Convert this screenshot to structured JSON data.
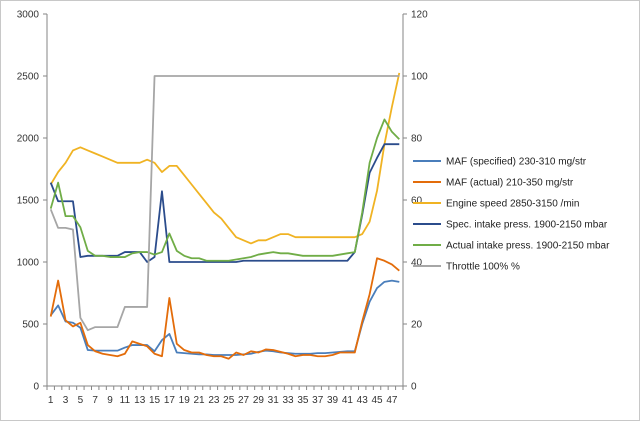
{
  "chart_data": {
    "type": "line",
    "x": [
      1,
      2,
      3,
      4,
      5,
      6,
      7,
      8,
      9,
      10,
      11,
      12,
      13,
      14,
      15,
      16,
      17,
      18,
      19,
      20,
      21,
      22,
      23,
      24,
      25,
      26,
      27,
      28,
      29,
      30,
      31,
      32,
      33,
      34,
      35,
      36,
      37,
      38,
      39,
      40,
      41,
      42,
      43,
      44,
      45,
      46,
      47,
      48
    ],
    "x_tick_labels": [
      "1",
      "3",
      "5",
      "7",
      "9",
      "11",
      "13",
      "15",
      "17",
      "19",
      "21",
      "23",
      "25",
      "27",
      "29",
      "31",
      "33",
      "35",
      "37",
      "39",
      "41",
      "43",
      "45",
      "47"
    ],
    "y_left_ticks": [
      "0",
      "500",
      "1000",
      "1500",
      "2000",
      "2500",
      "3000"
    ],
    "y_right_ticks": [
      "0",
      "20",
      "40",
      "60",
      "80",
      "100",
      "120"
    ],
    "ylim_left": [
      0,
      3000
    ],
    "ylim_right": [
      0,
      120
    ],
    "grid": false,
    "legend_position": "right",
    "series": [
      {
        "name": "MAF (specified) 230-310  mg/str",
        "color": "#4a7ebb",
        "axis": "left",
        "values": [
          570,
          650,
          520,
          510,
          470,
          290,
          285,
          285,
          285,
          285,
          310,
          330,
          330,
          330,
          280,
          370,
          420,
          270,
          265,
          260,
          255,
          255,
          250,
          250,
          250,
          250,
          255,
          260,
          275,
          285,
          280,
          270,
          265,
          260,
          260,
          260,
          265,
          265,
          270,
          275,
          280,
          280,
          500,
          680,
          790,
          840,
          850,
          840
        ]
      },
      {
        "name": "MAF (actual) 210-350  mg/str",
        "color": "#e36c0a",
        "axis": "left",
        "values": [
          560,
          850,
          530,
          480,
          510,
          330,
          280,
          260,
          250,
          240,
          260,
          360,
          340,
          320,
          260,
          240,
          710,
          340,
          290,
          270,
          270,
          250,
          240,
          240,
          220,
          270,
          250,
          280,
          270,
          295,
          290,
          275,
          260,
          240,
          250,
          250,
          240,
          240,
          250,
          270,
          270,
          270,
          520,
          740,
          1030,
          1010,
          980,
          930
        ]
      },
      {
        "name": "Engine speed 2850-3150  /min",
        "color": "#f0b323",
        "axis": "right",
        "values": [
          65,
          69,
          72,
          76,
          77,
          76,
          75,
          74,
          73,
          72,
          72,
          72,
          72,
          73,
          72,
          69,
          71,
          71,
          68,
          65,
          62,
          59,
          56,
          54,
          51,
          48,
          47,
          46,
          47,
          47,
          48,
          49,
          49,
          48,
          48,
          48,
          48,
          48,
          48,
          48,
          48,
          48,
          49,
          53,
          63,
          78,
          90,
          101
        ]
      },
      {
        "name": "Spec. intake press. 1900-2150  mbar",
        "color": "#2b4c8c",
        "axis": "left",
        "values": [
          1640,
          1490,
          1490,
          1490,
          1040,
          1050,
          1050,
          1050,
          1050,
          1050,
          1080,
          1080,
          1080,
          1000,
          1040,
          1570,
          1000,
          1000,
          1000,
          1000,
          1000,
          1000,
          1000,
          1000,
          1000,
          1000,
          1010,
          1010,
          1010,
          1010,
          1010,
          1010,
          1010,
          1010,
          1010,
          1010,
          1010,
          1010,
          1010,
          1010,
          1010,
          1080,
          1380,
          1720,
          1840,
          1950,
          1950,
          1950
        ]
      },
      {
        "name": "Actual intake press. 1900-2150  mbar",
        "color": "#70ad47",
        "axis": "left",
        "values": [
          1430,
          1640,
          1370,
          1370,
          1280,
          1090,
          1050,
          1050,
          1040,
          1040,
          1040,
          1070,
          1080,
          1080,
          1060,
          1080,
          1230,
          1090,
          1050,
          1030,
          1030,
          1010,
          1010,
          1010,
          1010,
          1020,
          1030,
          1040,
          1060,
          1070,
          1080,
          1070,
          1070,
          1060,
          1050,
          1050,
          1050,
          1050,
          1050,
          1060,
          1070,
          1080,
          1400,
          1800,
          2000,
          2150,
          2050,
          1990
        ]
      },
      {
        "name": "Throttle 100%  %",
        "color": "#a6a6a6",
        "axis": "right",
        "values": [
          57,
          51,
          51,
          50.5,
          22,
          18,
          19,
          19,
          19,
          19,
          25.5,
          25.5,
          25.5,
          25.5,
          100,
          100,
          100,
          100,
          100,
          100,
          100,
          100,
          100,
          100,
          100,
          100,
          100,
          100,
          100,
          100,
          100,
          100,
          100,
          100,
          100,
          100,
          100,
          100,
          100,
          100,
          100,
          100,
          100,
          100,
          100,
          100,
          100,
          100
        ]
      }
    ]
  }
}
